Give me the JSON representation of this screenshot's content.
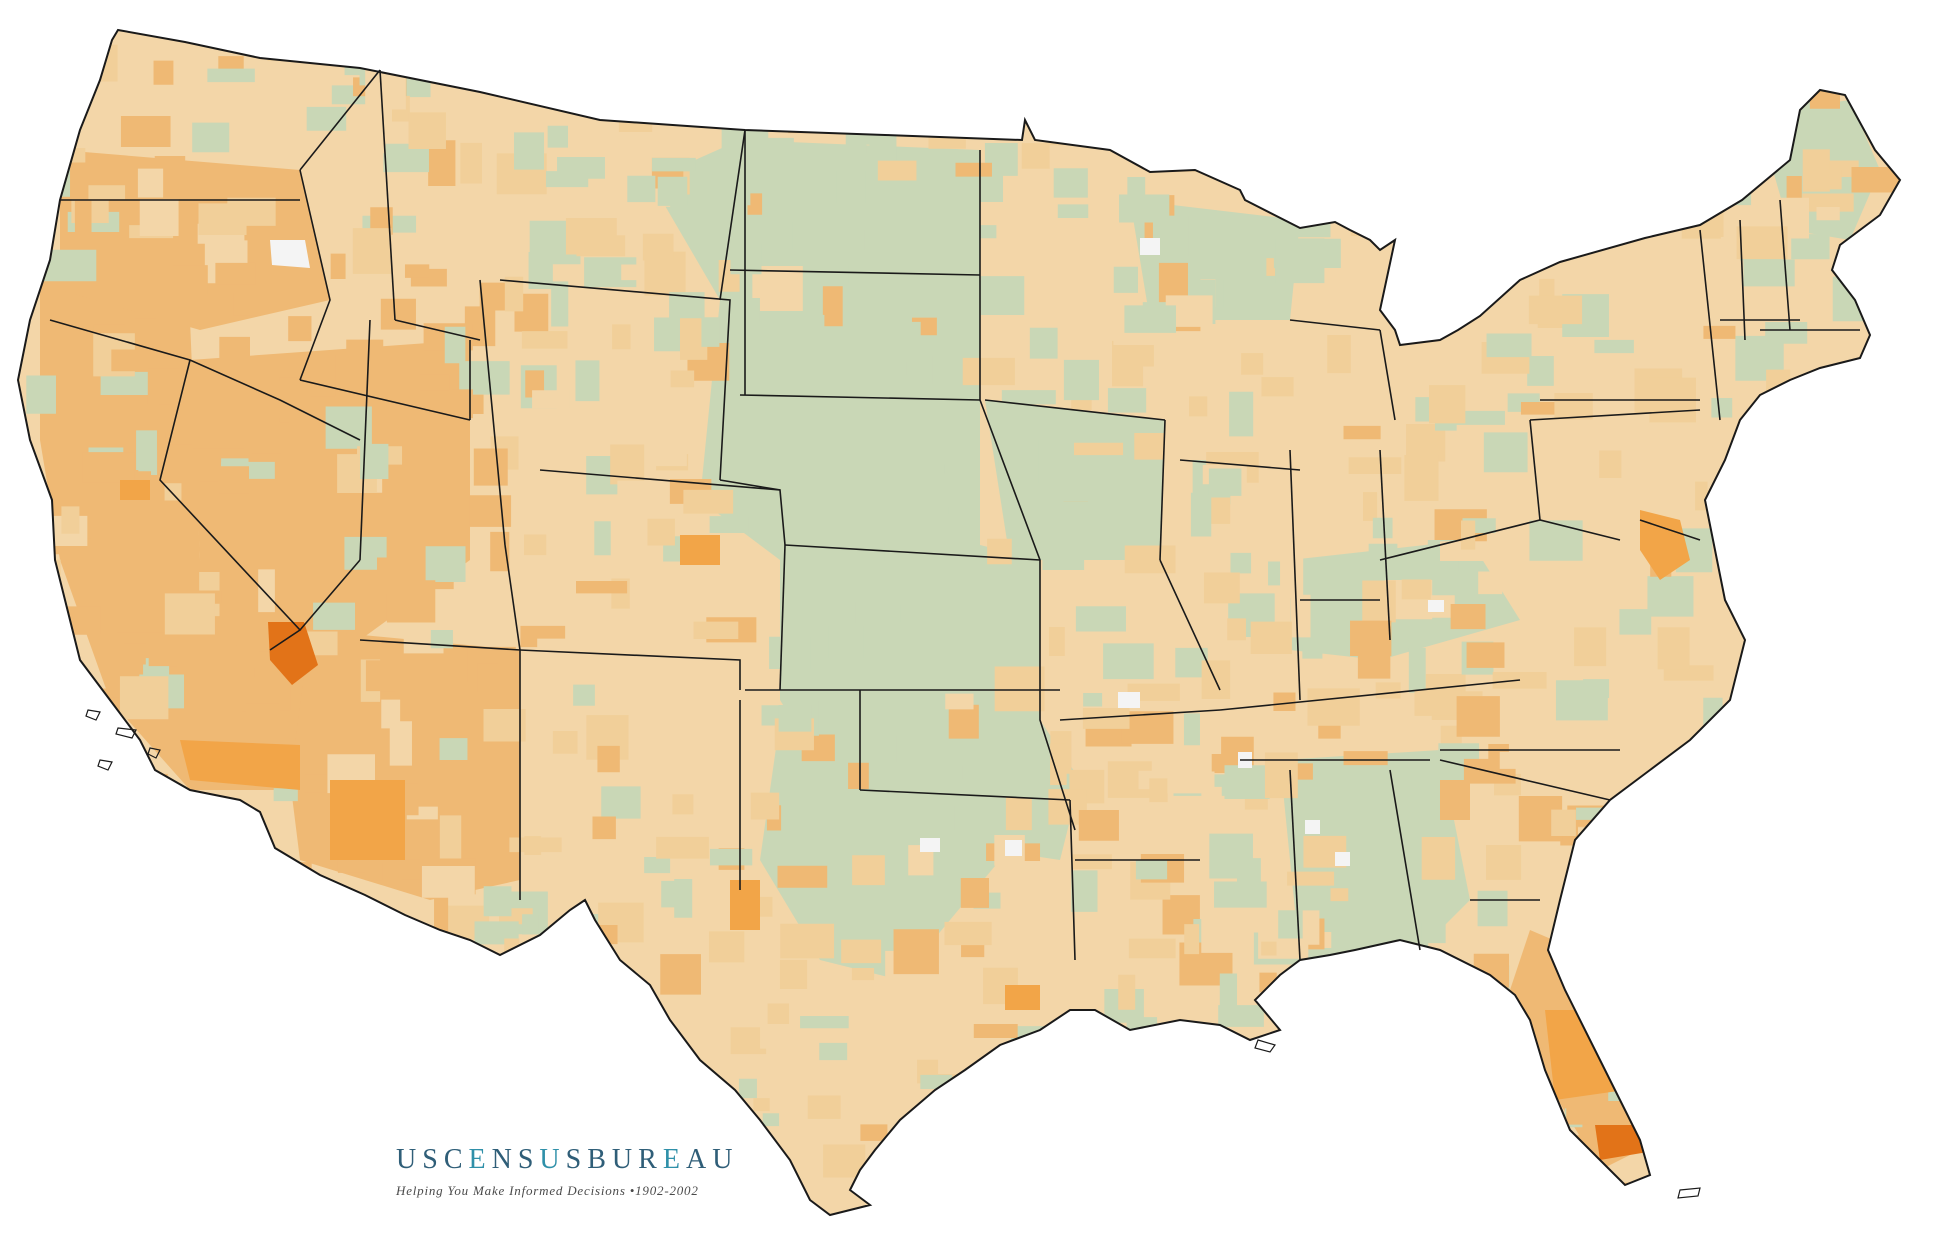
{
  "map": {
    "colors": {
      "background": "#ffffff",
      "land_light_tan": "#f3d6a8",
      "land_tan": "#f1cf99",
      "land_orange_light": "#efb974",
      "land_orange": "#f2a548",
      "land_orange_dark": "#e27318",
      "land_sage": "#c9d7b6",
      "land_white": "#f4f4f4",
      "border": "#1a1a1a"
    }
  },
  "logo": {
    "wordmark_letters": [
      {
        "ch": "U",
        "color": "#2f5e78"
      },
      {
        "ch": "S",
        "color": "#2f5e78"
      },
      {
        "ch": "C",
        "color": "#2f5e78"
      },
      {
        "ch": "E",
        "color": "#2f90a9"
      },
      {
        "ch": "N",
        "color": "#2f5e78"
      },
      {
        "ch": "S",
        "color": "#2f5e78"
      },
      {
        "ch": "U",
        "color": "#2f90a9"
      },
      {
        "ch": "S",
        "color": "#2f5e78"
      },
      {
        "ch": "B",
        "color": "#2f5e78"
      },
      {
        "ch": "U",
        "color": "#2f5e78"
      },
      {
        "ch": "R",
        "color": "#2f5e78"
      },
      {
        "ch": "E",
        "color": "#2f90a9"
      },
      {
        "ch": "A",
        "color": "#2f5e78"
      },
      {
        "ch": "U",
        "color": "#2f5e78"
      }
    ],
    "tagline": "Helping You Make Informed Decisions •1902-2002"
  }
}
